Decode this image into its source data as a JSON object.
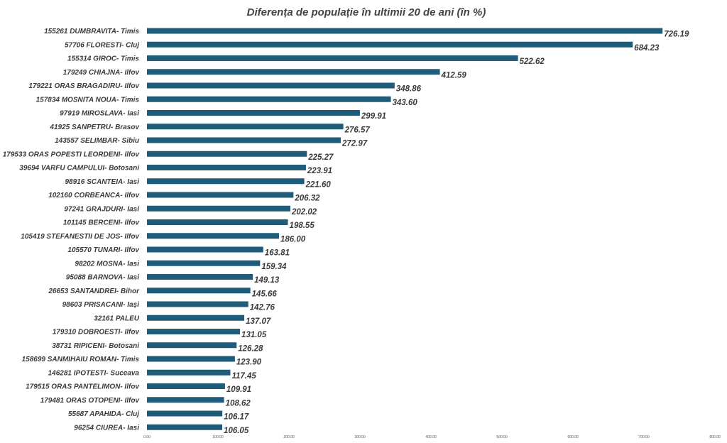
{
  "chart_data": {
    "type": "bar",
    "orientation": "horizontal",
    "title": "Diferența de populație în ultimii 20 de ani (în %)",
    "xlabel": "",
    "ylabel": "",
    "xlim": [
      0,
      800
    ],
    "grid": false,
    "legend": "none",
    "bar_color": "#1f5c7a",
    "x_ticks": [
      "0.00",
      "100.00",
      "200.00",
      "300.00",
      "400.00",
      "500.00",
      "600.00",
      "700.00",
      "800.00"
    ],
    "categories": [
      "155261 DUMBRAVITA- Timis",
      "57706 FLORESTI- Cluj",
      "155314 GIROC- Timis",
      "179249 CHIAJNA- Ilfov",
      "179221 ORAS BRAGADIRU- Ilfov",
      "157834 MOSNITA NOUA- Timis",
      "97919 MIROSLAVA- Iasi",
      "41925 SANPETRU- Brasov",
      "143557 SELIMBAR- Sibiu",
      "179533 ORAS POPESTI LEORDENI- Ilfov",
      "39694 VARFU CAMPULUI- Botosani",
      "98916 SCANTEIA- Iasi",
      "102160 CORBEANCA- Ilfov",
      "97241 GRAJDURI- Iasi",
      "101145 BERCENI- Ilfov",
      "105419 STEFANESTII DE JOS- Ilfov",
      "105570 TUNARI- Ilfov",
      "98202 MOSNA- Iasi",
      "95088 BARNOVA- Iasi",
      "26653 SANTANDREI- Bihor",
      "98603 PRISACANI- Iași",
      "32161 PALEU",
      "179310 DOBROESTI- Ilfov",
      "38731 RIPICENI- Botosani",
      "158699 SANMIHAIU ROMAN- Timis",
      "146281 IPOTESTI- Suceava",
      "179515 ORAS PANTELIMON- Ilfov",
      "179481 ORAS OTOPENI- Ilfov",
      "55687 APAHIDA- Cluj",
      "96254 CIUREA- Iasi"
    ],
    "values": [
      726.19,
      684.23,
      522.62,
      412.59,
      348.86,
      343.6,
      299.91,
      276.57,
      272.97,
      225.27,
      223.91,
      221.6,
      206.32,
      202.02,
      198.55,
      186.0,
      163.81,
      159.34,
      149.13,
      145.66,
      142.76,
      137.07,
      131.05,
      126.28,
      123.9,
      117.45,
      109.91,
      108.62,
      106.17,
      106.05
    ],
    "value_labels": [
      "726.19",
      "684.23",
      "522.62",
      "412.59",
      "348.86",
      "343.60",
      "299.91",
      "276.57",
      "272.97",
      "225.27",
      "223.91",
      "221.60",
      "206.32",
      "202.02",
      "198.55",
      "186.00",
      "163.81",
      "159.34",
      "149.13",
      "145.66",
      "142.76",
      "137.07",
      "131.05",
      "126.28",
      "123.90",
      "117.45",
      "109.91",
      "108.62",
      "106.17",
      "106.05"
    ]
  }
}
